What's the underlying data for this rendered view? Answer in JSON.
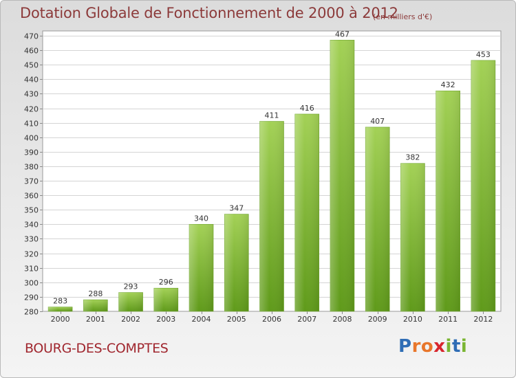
{
  "chart_data": {
    "type": "bar",
    "title": "Dotation Globale de Fonctionnement de 2000 à 2012",
    "subtitle": "(en milliers d'€)",
    "categories": [
      "2000",
      "2001",
      "2002",
      "2003",
      "2004",
      "2005",
      "2006",
      "2007",
      "2008",
      "2009",
      "2010",
      "2011",
      "2012"
    ],
    "values": [
      283,
      288,
      293,
      296,
      340,
      347,
      411,
      416,
      467,
      407,
      382,
      432,
      453
    ],
    "data_labels": [
      "283",
      "288",
      "293",
      "296",
      "340",
      "347",
      "411",
      "416",
      "467",
      "407",
      "382",
      "432",
      "453"
    ],
    "ylim": [
      280,
      470
    ],
    "yticks": [
      280,
      290,
      300,
      310,
      320,
      330,
      340,
      350,
      360,
      370,
      380,
      390,
      400,
      410,
      420,
      430,
      440,
      450,
      460,
      470
    ],
    "ytick_labels": [
      "280",
      "290",
      "300",
      "310",
      "320",
      "330",
      "340",
      "350",
      "360",
      "370",
      "380",
      "390",
      "400",
      "410",
      "420",
      "430",
      "440",
      "450",
      "460",
      "470"
    ],
    "grid": true,
    "bar_color": "#7ab532"
  },
  "footer": {
    "city": "BOURG-DES-COMPTES",
    "logo": "Proxiti",
    "logo_letters": [
      {
        "ch": "P",
        "color": "#2f6db5"
      },
      {
        "ch": "r",
        "color": "#e8762b"
      },
      {
        "ch": "o",
        "color": "#e8762b"
      },
      {
        "ch": "x",
        "color": "#d8262e"
      },
      {
        "ch": "i",
        "color": "#7ab532"
      },
      {
        "ch": "t",
        "color": "#2f6db5"
      },
      {
        "ch": "i",
        "color": "#7ab532"
      }
    ]
  }
}
